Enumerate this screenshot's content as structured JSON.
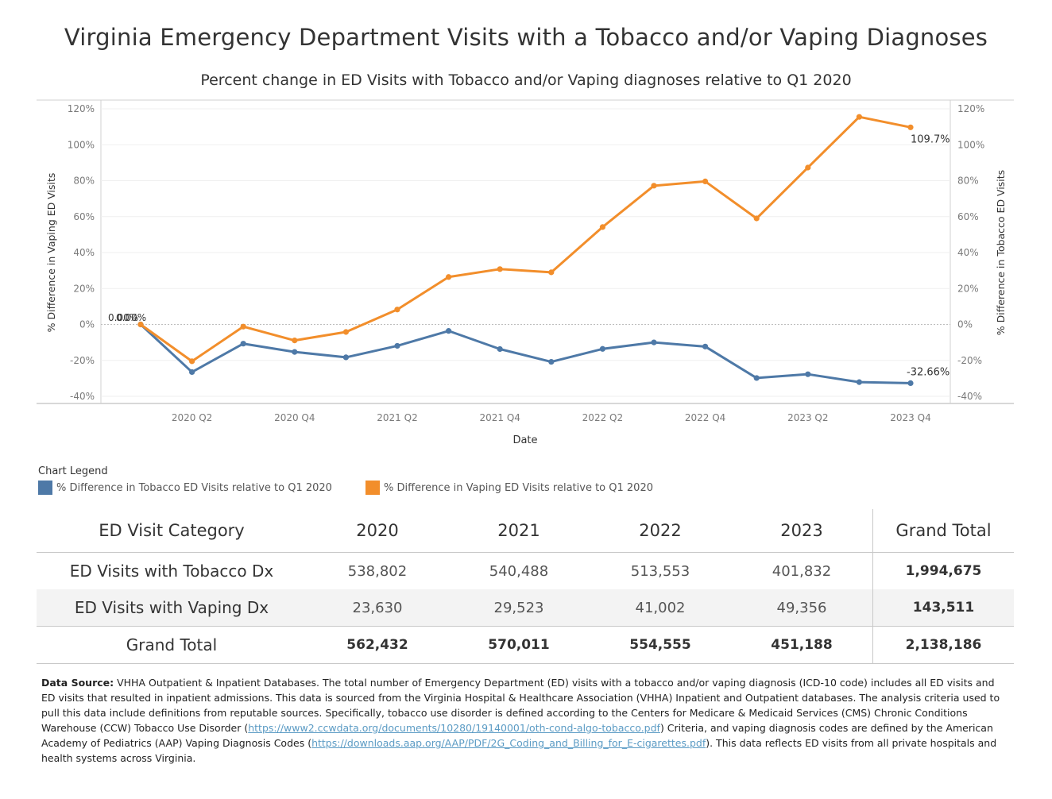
{
  "title": "Virginia Emergency Department Visits with a Tobacco and/or Vaping Diagnoses",
  "subtitle": "Percent change in ED Visits with Tobacco and/or Vaping diagnoses relative to Q1 2020",
  "chart_data": {
    "type": "line",
    "xlabel": "Date",
    "ylabel_left": "% Difference in Vaping ED Visits",
    "ylabel_right": "% Difference in Tobacco ED Visits",
    "ylim": [
      -40,
      120
    ],
    "y_ticks": [
      "120%",
      "100%",
      "80%",
      "60%",
      "40%",
      "20%",
      "0%",
      "-20%",
      "-40%"
    ],
    "y_tick_values": [
      120,
      100,
      80,
      60,
      40,
      20,
      0,
      -20,
      -40
    ],
    "x_tick_labels": [
      "2020 Q2",
      "2020 Q4",
      "2021 Q2",
      "2021 Q4",
      "2022 Q2",
      "2022 Q4",
      "2023 Q2",
      "2023 Q4"
    ],
    "x": [
      "2020 Q1",
      "2020 Q2",
      "2020 Q3",
      "2020 Q4",
      "2021 Q1",
      "2021 Q2",
      "2021 Q3",
      "2021 Q4",
      "2022 Q1",
      "2022 Q2",
      "2022 Q3",
      "2022 Q4",
      "2023 Q1",
      "2023 Q2",
      "2023 Q3",
      "2023 Q4"
    ],
    "grid": true,
    "series": [
      {
        "name": "% Difference in Tobacco ED Visits relative to Q1 2020",
        "color": "#4e79a7",
        "values": [
          0,
          -26.5,
          -10.7,
          -15.3,
          -18.3,
          -11.9,
          -3.6,
          -13.7,
          -20.8,
          -13.6,
          -10.0,
          -12.3,
          -29.8,
          -27.7,
          -32.1,
          -32.66
        ]
      },
      {
        "name": "% Difference in Vaping ED Visits relative to Q1 2020",
        "color": "#f28e2b",
        "values": [
          0,
          -20.5,
          -1.2,
          -8.9,
          -4.2,
          8.3,
          26.4,
          30.8,
          29.0,
          54.2,
          77.2,
          79.6,
          59.0,
          87.3,
          115.5,
          109.7
        ]
      }
    ],
    "start_labels": [
      "0.00%",
      "0.00%"
    ],
    "end_labels": [
      "-32.66%",
      "109.7%"
    ]
  },
  "legend": {
    "title": "Chart Legend",
    "items": [
      {
        "label": "% Difference in Tobacco ED Visits relative to Q1 2020",
        "color": "#4e79a7"
      },
      {
        "label": "% Difference in Vaping ED Visits relative to Q1 2020",
        "color": "#f28e2b"
      }
    ]
  },
  "table": {
    "headers": [
      "ED Visit Category",
      "2020",
      "2021",
      "2022",
      "2023",
      "Grand Total"
    ],
    "rows": [
      {
        "label": "ED Visits with Tobacco Dx",
        "values": [
          "538,802",
          "540,488",
          "513,553",
          "401,832"
        ],
        "total": "1,994,675"
      },
      {
        "label": "ED Visits with Vaping Dx",
        "values": [
          "23,630",
          "29,523",
          "41,002",
          "49,356"
        ],
        "total": "143,511"
      }
    ],
    "grand_total": {
      "label": "Grand Total",
      "values": [
        "562,432",
        "570,011",
        "554,555",
        "451,188"
      ],
      "total": "2,138,186"
    }
  },
  "source": {
    "label": "Data Source:",
    "text1": "VHHA Outpatient & Inpatient Databases. The total number of Emergency Department (ED) visits with a tobacco and/or vaping diagnosis (ICD-10 code) includes all ED visits and ED visits that resulted in inpatient admissions. This data is sourced from the Virginia Hospital & Healthcare Association (VHHA) Inpatient and Outpatient databases. The analysis criteria used to pull this data include definitions from reputable sources. Specifically, tobacco use disorder is defined according to the Centers for Medicare & Medicaid Services (CMS) Chronic Conditions Warehouse (CCW) Tobacco Use Disorder (",
    "link1": "https://www2.ccwdata.org/documents/10280/19140001/oth-cond-algo-tobacco.pdf",
    "text2": ") Criteria, and vaping diagnosis codes are defined by the American Academy of Pediatrics (AAP) Vaping Diagnosis Codes (",
    "link2": "https://downloads.aap.org/AAP/PDF/2G_Coding_and_Billing_for_E-cigarettes.pdf",
    "text3": "). This data reflects ED visits from all private hospitals and health systems across Virginia."
  }
}
